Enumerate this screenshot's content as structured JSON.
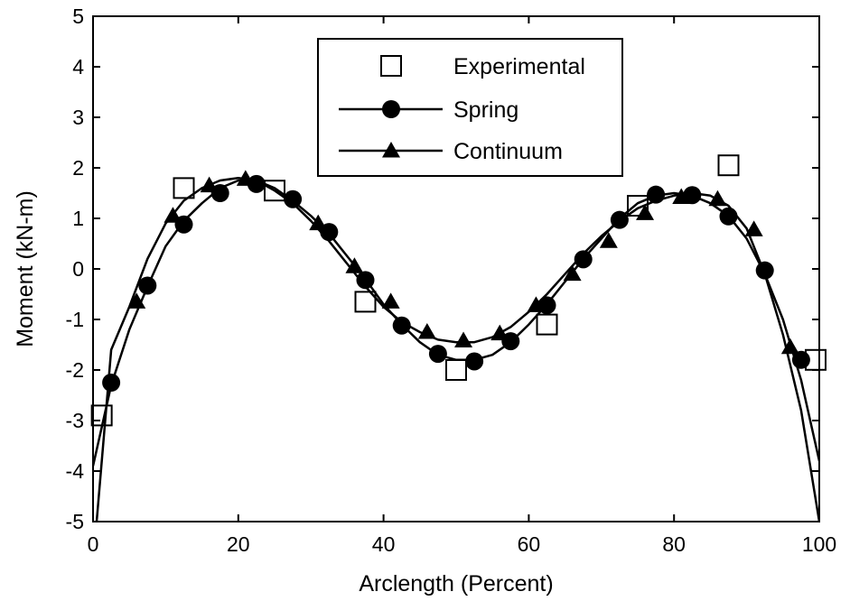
{
  "chart_data": {
    "type": "line",
    "title": "",
    "xlabel": "Arclength (Percent)",
    "ylabel": "Moment (kN-m)",
    "xlim": [
      0,
      100
    ],
    "ylim": [
      -5,
      5
    ],
    "xticks": [
      0,
      20,
      40,
      60,
      80,
      100
    ],
    "yticks": [
      5,
      4,
      3,
      2,
      1,
      0,
      -1,
      -2,
      -3,
      -4,
      -5
    ],
    "grid": false,
    "legend_position": "top-center",
    "series": [
      {
        "name": "Experimental",
        "style": "markers",
        "marker": "open-square",
        "x": [
          1.2,
          12.5,
          25.0,
          37.5,
          50.0,
          62.5,
          75.0,
          87.5,
          99.5
        ],
        "y": [
          -2.9,
          1.6,
          1.55,
          -0.65,
          -2.0,
          -1.1,
          1.25,
          2.05,
          -1.8
        ]
      },
      {
        "name": "Spring",
        "style": "line+markers",
        "marker": "filled-circle",
        "curve_x": [
          0,
          2.5,
          5,
          7.5,
          10,
          12.5,
          15,
          17.5,
          20,
          22.5,
          25,
          27.5,
          30,
          32.5,
          35,
          37.5,
          40,
          42.5,
          45,
          47.5,
          50,
          52.5,
          55,
          57.5,
          60,
          62.5,
          65,
          67.5,
          70,
          72.5,
          75,
          77.5,
          80,
          82.5,
          85,
          87.5,
          90,
          92.5,
          95,
          97.5,
          100
        ],
        "curve_y": [
          -3.9,
          -2.3,
          -1.2,
          -0.35,
          0.45,
          0.95,
          1.3,
          1.6,
          1.75,
          1.75,
          1.6,
          1.35,
          1.05,
          0.7,
          0.25,
          -0.2,
          -0.7,
          -1.1,
          -1.45,
          -1.7,
          -1.8,
          -1.8,
          -1.7,
          -1.45,
          -1.1,
          -0.7,
          -0.25,
          0.2,
          0.6,
          1.0,
          1.3,
          1.45,
          1.5,
          1.45,
          1.3,
          1.05,
          0.6,
          -0.1,
          -1.0,
          -2.2,
          -3.8
        ],
        "marker_x": [
          2.5,
          7.5,
          12.5,
          17.5,
          22.5,
          27.5,
          32.5,
          37.5,
          42.5,
          47.5,
          52.5,
          57.5,
          62.5,
          67.5,
          72.5,
          77.5,
          82.5,
          87.5,
          92.5,
          97.5
        ],
        "marker_y": [
          -2.25,
          -0.33,
          0.88,
          1.5,
          1.68,
          1.38,
          0.73,
          -0.22,
          -1.12,
          -1.68,
          -1.83,
          -1.43,
          -0.72,
          0.19,
          0.97,
          1.47,
          1.46,
          1.04,
          -0.03,
          -1.8
        ]
      },
      {
        "name": "Continuum",
        "style": "line+markers",
        "marker": "filled-triangle",
        "curve_x": [
          0.5,
          2.5,
          5,
          7.5,
          10,
          12.5,
          15,
          17.5,
          20,
          22.5,
          25,
          27.5,
          30,
          32.5,
          35,
          37.5,
          40,
          42.5,
          45,
          47.5,
          50,
          52.5,
          55,
          57.5,
          60,
          62.5,
          65,
          67.5,
          70,
          72.5,
          75,
          77.5,
          80,
          82.5,
          85,
          87.5,
          90,
          92.5,
          95,
          97.5,
          100
        ],
        "curve_y": [
          -5.0,
          -1.6,
          -0.75,
          0.2,
          0.9,
          1.35,
          1.6,
          1.75,
          1.8,
          1.75,
          1.55,
          1.3,
          0.95,
          0.55,
          0.1,
          -0.35,
          -0.75,
          -1.05,
          -1.25,
          -1.4,
          -1.45,
          -1.45,
          -1.35,
          -1.15,
          -0.85,
          -0.5,
          -0.1,
          0.3,
          0.65,
          0.95,
          1.2,
          1.35,
          1.45,
          1.5,
          1.45,
          1.25,
          0.8,
          -0.1,
          -1.3,
          -2.8,
          -5.0
        ],
        "marker_x": [
          6,
          11,
          16,
          21,
          31,
          36,
          41,
          46,
          51,
          56,
          61,
          66,
          71,
          76,
          81,
          86,
          91,
          96
        ],
        "marker_y": [
          -0.65,
          1.05,
          1.65,
          1.78,
          0.9,
          0.05,
          -0.65,
          -1.25,
          -1.42,
          -1.28,
          -0.72,
          -0.1,
          0.55,
          1.1,
          1.42,
          1.38,
          0.78,
          -1.55
        ]
      }
    ]
  }
}
